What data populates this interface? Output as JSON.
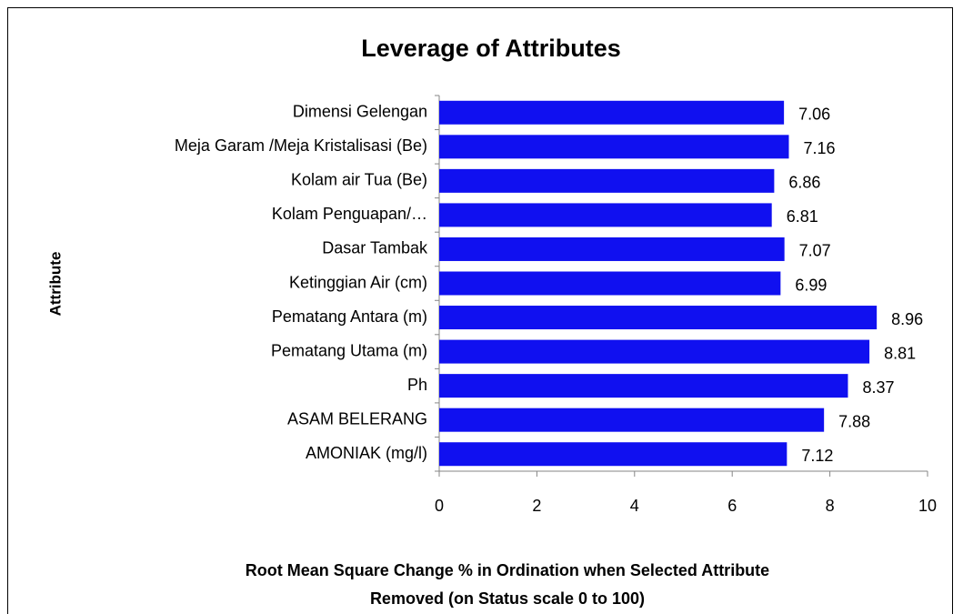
{
  "chart_data": {
    "type": "hbar",
    "title": "Leverage of Attributes",
    "ylabel": "Attribute",
    "xlabel": [
      "Root Mean Square Change % in Ordination when Selected Attribute",
      "Removed (on Status scale 0 to 100)"
    ],
    "categories": [
      "Dimensi Gelengan",
      "Meja Garam /Meja Kristalisasi (Be)",
      "Kolam air Tua (Be)",
      "Kolam Penguapan/…",
      "Dasar Tambak",
      "Ketinggian Air (cm)",
      "Pematang Antara (m)",
      "Pematang Utama (m)",
      "Ph",
      "ASAM BELERANG",
      "AMONIAK (mg/l)"
    ],
    "values": [
      7.06,
      7.16,
      6.86,
      6.81,
      7.07,
      6.99,
      8.96,
      8.81,
      8.37,
      7.88,
      7.12
    ],
    "color": "#1010f0",
    "xlim": [
      0,
      10
    ],
    "xticks": [
      0,
      2,
      4,
      6,
      8,
      10
    ],
    "grid": false
  }
}
